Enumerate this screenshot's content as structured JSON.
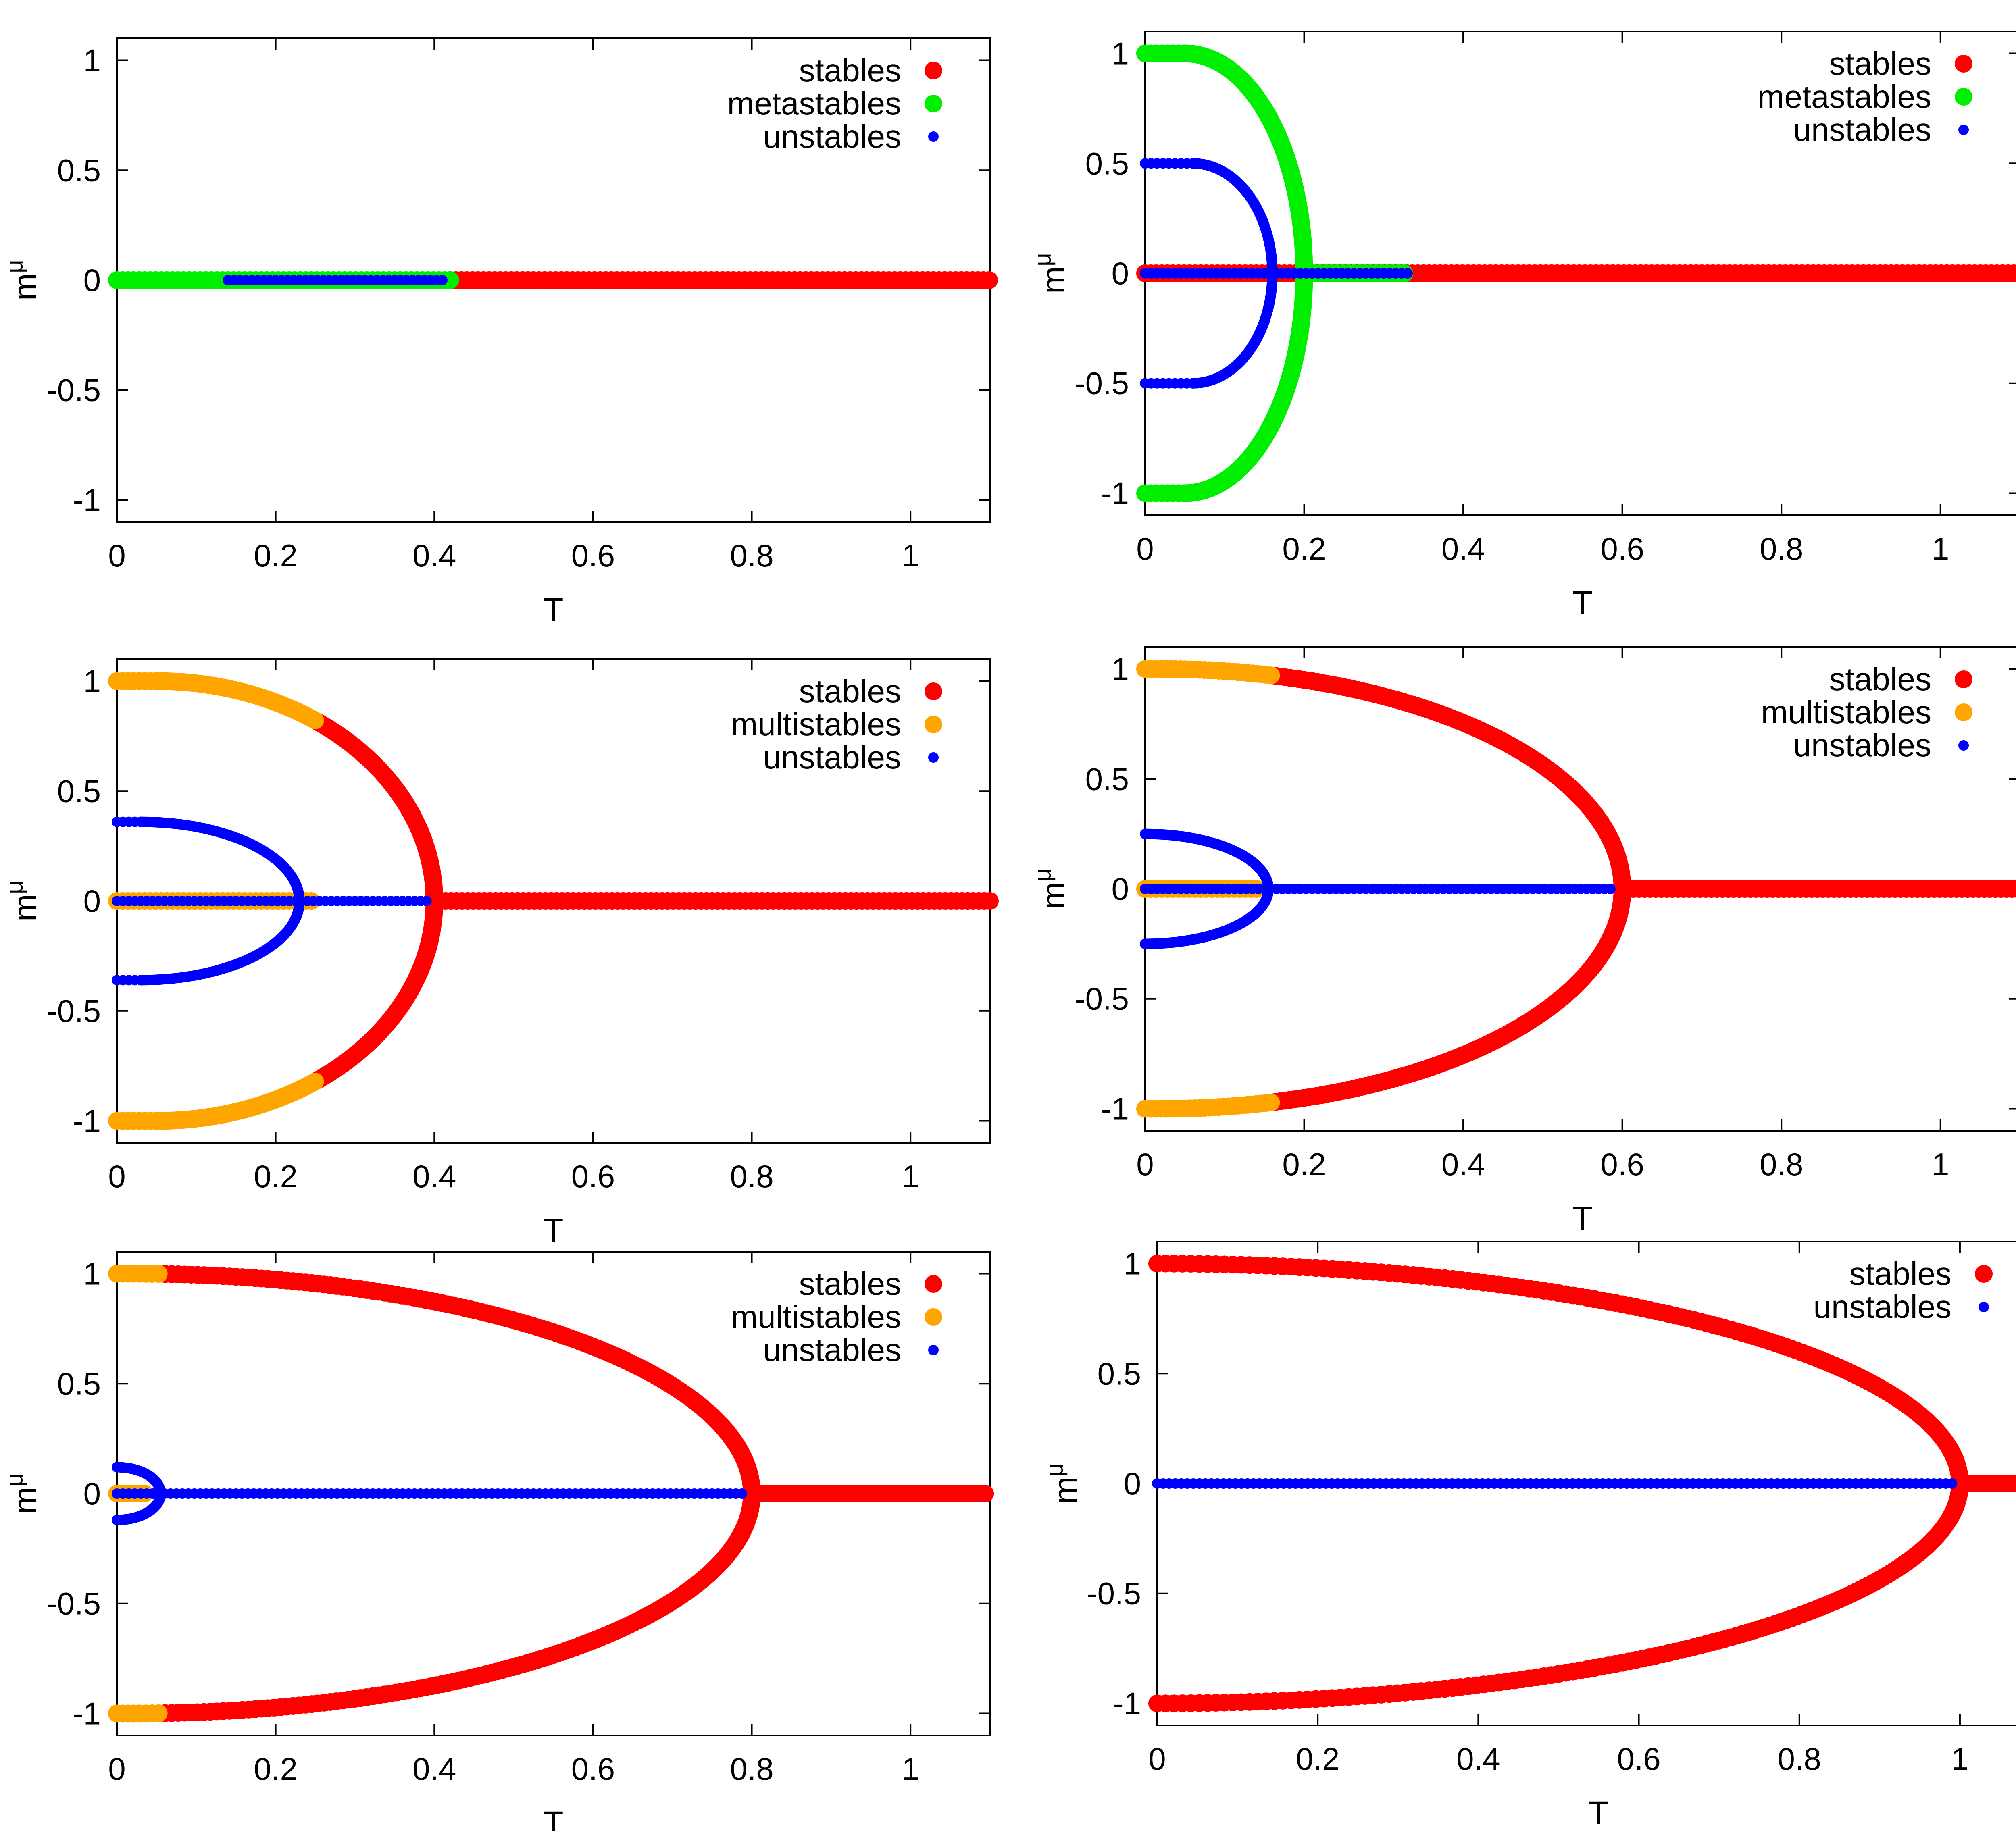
{
  "figure": {
    "series_colors": {
      "stables": "#ff0000",
      "metastables": "#00ee00",
      "multistables": "#ffa500",
      "unstables": "#0000ff"
    }
  },
  "chart_data": [
    {
      "type": "scatter",
      "xlabel": "T",
      "ylabel": "m^μ",
      "xlim": [
        0,
        1.1
      ],
      "ylim": [
        -1.1,
        1.1
      ],
      "xticks": [
        "0",
        "0.2",
        "0.4",
        "0.6",
        "0.8",
        "1"
      ],
      "yticks": [
        "-1",
        "-0.5",
        "0",
        "0.5",
        "1"
      ],
      "grid": false,
      "legend_position": "top-right",
      "series": [
        {
          "name": "stables",
          "color": "#ff0000",
          "marker": "large",
          "branches": [
            {
              "x_range": [
                0.42,
                1.1
              ],
              "y": 0
            }
          ]
        },
        {
          "name": "metastables",
          "color": "#00ee00",
          "marker": "large",
          "branches": [
            {
              "x_range": [
                0,
                0.42
              ],
              "y": 0
            }
          ]
        },
        {
          "name": "unstables",
          "color": "#0000ff",
          "marker": "small",
          "branches": [
            {
              "x_range": [
                0.14,
                0.41
              ],
              "y": 0
            }
          ]
        }
      ]
    },
    {
      "type": "scatter",
      "xlabel": "T",
      "ylabel": "m^μ",
      "xlim": [
        0,
        1.1
      ],
      "ylim": [
        -1.1,
        1.1
      ],
      "xticks": [
        "0",
        "0.2",
        "0.4",
        "0.6",
        "0.8",
        "1"
      ],
      "yticks": [
        "-1",
        "-0.5",
        "0",
        "0.5",
        "1"
      ],
      "grid": false,
      "legend_position": "top-right",
      "series": [
        {
          "name": "stables",
          "color": "#ff0000",
          "marker": "large",
          "branches": [
            {
              "x_range": [
                0,
                1.1
              ],
              "y": 0
            }
          ]
        },
        {
          "name": "metastables",
          "color": "#00ee00",
          "marker": "large",
          "branches": [
            {
              "x_range": [
                0,
                0.2
              ],
              "amplitude": 1,
              "tc": 0.2,
              "flat_until": 0.05
            },
            {
              "x_range": [
                0.2,
                0.33
              ],
              "y": 0
            }
          ]
        },
        {
          "name": "unstables",
          "color": "#0000ff",
          "marker": "small",
          "branches": [
            {
              "x_range": [
                0,
                0.16
              ],
              "amplitude": 0.5,
              "tc": 0.16,
              "flat_until": 0.06
            },
            {
              "x_range": [
                0,
                0.33
              ],
              "y": 0
            }
          ]
        }
      ]
    },
    {
      "type": "scatter",
      "xlabel": "T",
      "ylabel": "m^μ",
      "xlim": [
        0,
        1.1
      ],
      "ylim": [
        -1.1,
        1.1
      ],
      "xticks": [
        "0",
        "0.2",
        "0.4",
        "0.6",
        "0.8",
        "1"
      ],
      "yticks": [
        "-1",
        "-0.5",
        "0",
        "0.5",
        "1"
      ],
      "grid": false,
      "legend_position": "top-right",
      "series": [
        {
          "name": "stables",
          "color": "#ff0000",
          "marker": "large",
          "branches": [
            {
              "x_range": [
                0.25,
                0.4
              ],
              "amplitude": 1,
              "tc": 0.4,
              "flat_until": 0.05
            },
            {
              "x_range": [
                0.4,
                1.1
              ],
              "y": 0
            }
          ]
        },
        {
          "name": "multistables",
          "color": "#ffa500",
          "marker": "large",
          "branches": [
            {
              "x_range": [
                0,
                0.25
              ],
              "amplitude": 1,
              "tc": 0.4,
              "flat_until": 0.05
            },
            {
              "x_range": [
                0,
                0.25
              ],
              "y": 0
            }
          ]
        },
        {
          "name": "unstables",
          "color": "#0000ff",
          "marker": "small",
          "branches": [
            {
              "x_range": [
                0,
                0.23
              ],
              "amplitude": 0.36,
              "tc": 0.23,
              "flat_until": 0.03
            },
            {
              "x_range": [
                0,
                0.39
              ],
              "y": 0
            }
          ]
        }
      ]
    },
    {
      "type": "scatter",
      "xlabel": "T",
      "ylabel": "m^μ",
      "xlim": [
        0,
        1.1
      ],
      "ylim": [
        -1.1,
        1.1
      ],
      "xticks": [
        "0",
        "0.2",
        "0.4",
        "0.6",
        "0.8",
        "1"
      ],
      "yticks": [
        "-1",
        "-0.5",
        "0",
        "0.5",
        "1"
      ],
      "grid": false,
      "legend_position": "top-right",
      "series": [
        {
          "name": "stables",
          "color": "#ff0000",
          "marker": "large",
          "branches": [
            {
              "x_range": [
                0.16,
                0.6
              ],
              "amplitude": 1,
              "tc": 0.6,
              "flat_until": 0.02
            },
            {
              "x_range": [
                0.6,
                1.1
              ],
              "y": 0
            }
          ]
        },
        {
          "name": "multistables",
          "color": "#ffa500",
          "marker": "large",
          "branches": [
            {
              "x_range": [
                0,
                0.16
              ],
              "amplitude": 1,
              "tc": 0.6,
              "flat_until": 0.02
            },
            {
              "x_range": [
                0,
                0.14
              ],
              "y": 0
            }
          ]
        },
        {
          "name": "unstables",
          "color": "#0000ff",
          "marker": "small",
          "branches": [
            {
              "x_range": [
                0,
                0.155
              ],
              "amplitude": 0.25,
              "tc": 0.155,
              "flat_until": 0.0
            },
            {
              "x_range": [
                0,
                0.59
              ],
              "y": 0
            }
          ]
        }
      ]
    },
    {
      "type": "scatter",
      "xlabel": "T",
      "ylabel": "m^μ",
      "xlim": [
        0,
        1.1
      ],
      "ylim": [
        -1.1,
        1.1
      ],
      "xticks": [
        "0",
        "0.2",
        "0.4",
        "0.6",
        "0.8",
        "1"
      ],
      "yticks": [
        "-1",
        "-0.5",
        "0",
        "0.5",
        "1"
      ],
      "grid": false,
      "legend_position": "top-right",
      "series": [
        {
          "name": "stables",
          "color": "#ff0000",
          "marker": "large",
          "branches": [
            {
              "x_range": [
                0.06,
                0.8
              ],
              "amplitude": 1,
              "tc": 0.8,
              "flat_until": 0.02
            },
            {
              "x_range": [
                0.8,
                1.1
              ],
              "y": 0
            }
          ]
        },
        {
          "name": "multistables",
          "color": "#ffa500",
          "marker": "large",
          "branches": [
            {
              "x_range": [
                0,
                0.06
              ],
              "amplitude": 1,
              "tc": 0.8,
              "flat_until": 0.02
            },
            {
              "x_range": [
                0,
                0.04
              ],
              "y": 0
            }
          ]
        },
        {
          "name": "unstables",
          "color": "#0000ff",
          "marker": "small",
          "branches": [
            {
              "x_range": [
                0,
                0.055
              ],
              "amplitude": 0.12,
              "tc": 0.055,
              "flat_until": 0.0
            },
            {
              "x_range": [
                0,
                0.79
              ],
              "y": 0
            }
          ]
        }
      ]
    },
    {
      "type": "scatter",
      "xlabel": "T",
      "ylabel": "m^μ",
      "xlim": [
        0,
        1.1
      ],
      "ylim": [
        -1.1,
        1.1
      ],
      "xticks": [
        "0",
        "0.2",
        "0.4",
        "0.6",
        "0.8",
        "1"
      ],
      "yticks": [
        "-1",
        "-0.5",
        "0",
        "0.5",
        "1"
      ],
      "grid": false,
      "legend_position": "top-right",
      "series": [
        {
          "name": "stables",
          "color": "#ff0000",
          "marker": "large",
          "branches": [
            {
              "x_range": [
                0,
                1.0
              ],
              "amplitude": 1,
              "tc": 1.0,
              "flat_until": 0.0
            },
            {
              "x_range": [
                1.0,
                1.1
              ],
              "y": 0
            }
          ]
        },
        {
          "name": "unstables",
          "color": "#0000ff",
          "marker": "small",
          "branches": [
            {
              "x_range": [
                0,
                0.99
              ],
              "y": 0
            }
          ]
        }
      ]
    }
  ]
}
